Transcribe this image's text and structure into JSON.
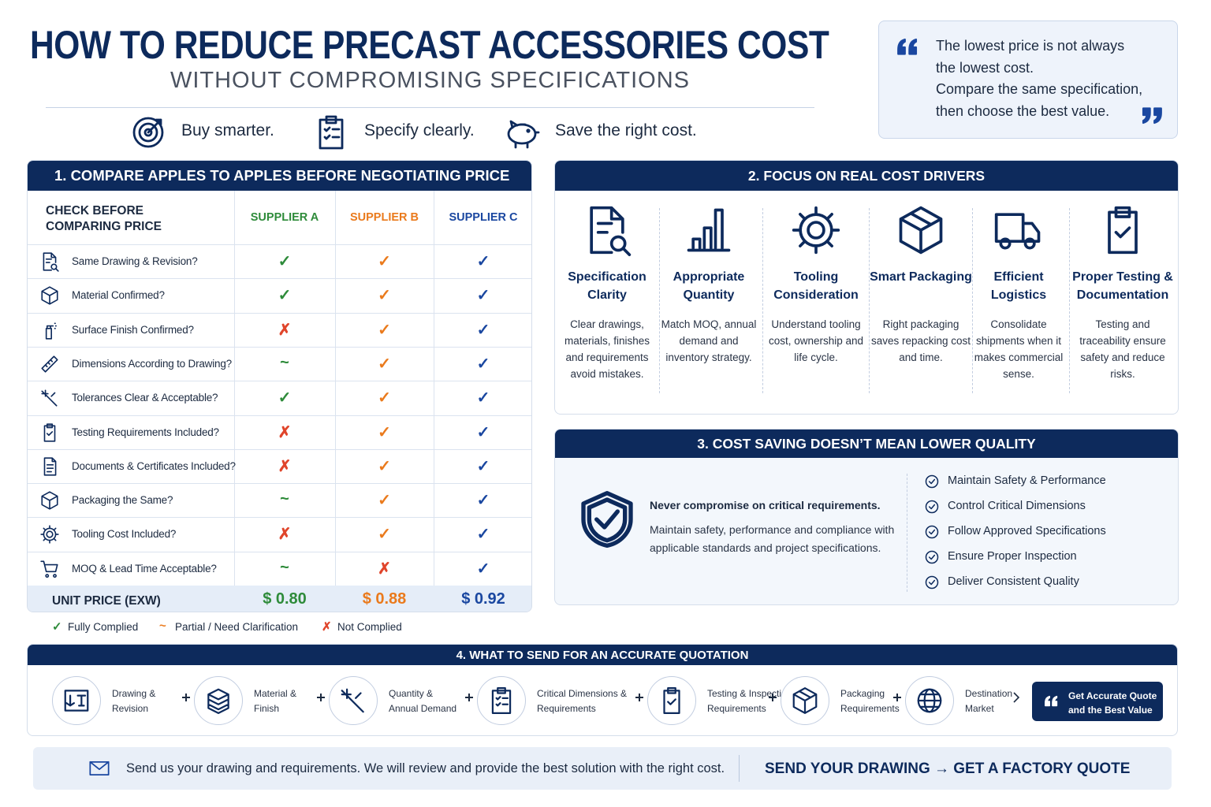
{
  "header": {
    "title": "HOW TO REDUCE PRECAST ACCESSORIES COST",
    "subtitle": "WITHOUT COMPROMISING SPECIFICATIONS",
    "taglines": [
      "Buy smarter.",
      "Specify clearly.",
      "Save the right cost."
    ]
  },
  "quote": {
    "lines": [
      "The lowest price is not always",
      "the lowest cost.",
      "Compare the same specification,",
      "then choose the best value."
    ]
  },
  "section1": {
    "title": "1. COMPARE APPLES TO APPLES BEFORE NEGOTIATING PRICE",
    "header_label": [
      "CHECK BEFORE",
      "COMPARING PRICE"
    ],
    "suppliers": [
      "SUPPLIER A",
      "SUPPLIER B",
      "SUPPLIER C"
    ],
    "rows": [
      {
        "label": "Same Drawing & Revision?",
        "marks": [
          "✓",
          "✓",
          "✓"
        ]
      },
      {
        "label": "Material Confirmed?",
        "marks": [
          "✓",
          "✓",
          "✓"
        ]
      },
      {
        "label": "Surface Finish Confirmed?",
        "marks": [
          "✗",
          "✓",
          "✓"
        ]
      },
      {
        "label": "Dimensions According to Drawing?",
        "marks": [
          "~",
          "✓",
          "✓"
        ]
      },
      {
        "label": "Tolerances Clear & Acceptable?",
        "marks": [
          "✓",
          "✓",
          "✓"
        ]
      },
      {
        "label": "Testing Requirements Included?",
        "marks": [
          "✗",
          "✓",
          "✓"
        ]
      },
      {
        "label": "Documents & Certificates Included?",
        "marks": [
          "✗",
          "✓",
          "✓"
        ]
      },
      {
        "label": "Packaging the Same?",
        "marks": [
          "~",
          "✓",
          "✓"
        ]
      },
      {
        "label": "Tooling Cost Included?",
        "marks": [
          "✗",
          "✓",
          "✓"
        ]
      },
      {
        "label": "MOQ & Lead Time Acceptable?",
        "marks": [
          "~",
          "✗",
          "✓"
        ]
      }
    ],
    "price_label": "UNIT PRICE (EXW)",
    "prices": [
      "$ 0.80",
      "$ 0.88",
      "$ 0.92"
    ],
    "legend": [
      {
        "symbol": "✓",
        "label": "Fully Complied"
      },
      {
        "symbol": "~",
        "label": "Partial / Need Clarification"
      },
      {
        "symbol": "✗",
        "label": "Not Complied"
      }
    ]
  },
  "section2": {
    "title": "2. FOCUS ON REAL COST DRIVERS",
    "items": [
      {
        "title": "Specification Clarity",
        "text": "Clear drawings, materials, finishes and requirements avoid mistakes."
      },
      {
        "title": "Appropriate Quantity",
        "text": "Match MOQ, annual demand and inventory strategy."
      },
      {
        "title": "Tooling Consideration",
        "text": "Understand tooling cost, ownership and life cycle."
      },
      {
        "title": "Smart Packaging",
        "text": "Right packaging saves repacking cost and time."
      },
      {
        "title": "Efficient Logistics",
        "text": "Consolidate shipments when it makes commercial sense."
      },
      {
        "title": "Proper Testing & Documentation",
        "text": "Testing and traceability ensure safety and reduce risks."
      }
    ]
  },
  "section3": {
    "title": "3. COST SAVING DOESN’T MEAN LOWER QUALITY",
    "lead": "Never compromise on critical requirements.",
    "text": "Maintain safety, performance and compliance with applicable standards and project specifications.",
    "checklist": [
      "Maintain Safety & Performance",
      "Control Critical Dimensions",
      "Follow Approved Specifications",
      "Ensure Proper Inspection",
      "Deliver Consistent Quality"
    ]
  },
  "section4": {
    "title": "4. WHAT TO SEND FOR AN ACCURATE QUOTATION",
    "items": [
      "Drawing & Revision",
      "Material & Finish",
      "Quantity & Annual Demand",
      "Critical Dimensions & Requirements",
      "Testing & Inspection Requirements",
      "Packaging Requirements",
      "Destination Market"
    ],
    "cta": "Get Accurate Quote and the Best Value"
  },
  "footer": {
    "text": "Send us your drawing and requirements. We will review and provide the best solution with the right cost.",
    "cta": "SEND YOUR DRAWING → GET A FACTORY QUOTE"
  }
}
